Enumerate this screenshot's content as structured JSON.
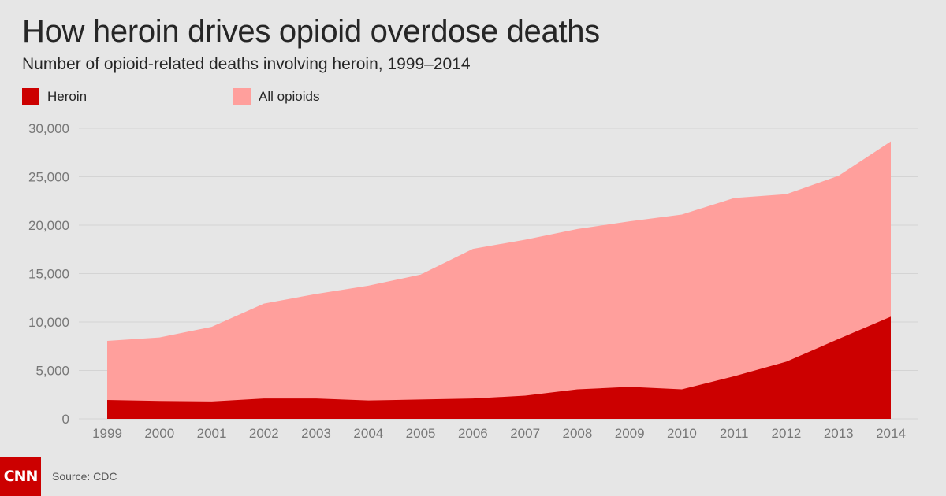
{
  "header": {
    "title": "How heroin drives opioid overdose deaths",
    "subtitle": "Number of opioid-related deaths involving heroin, 1999–2014"
  },
  "footer": {
    "logo_text": "CNN",
    "source": "Source: CDC"
  },
  "colors": {
    "heroin": "#cc0000",
    "all_opioids": "#ff9f9c",
    "grid": "#d4d4d4",
    "tick_label": "#777777"
  },
  "chart_data": {
    "type": "area",
    "title": "How heroin drives opioid overdose deaths",
    "subtitle": "Number of opioid-related deaths involving heroin, 1999–2014",
    "x": [
      1999,
      2000,
      2001,
      2002,
      2003,
      2004,
      2005,
      2006,
      2007,
      2008,
      2009,
      2010,
      2011,
      2012,
      2013,
      2014
    ],
    "x_tick_labels": [
      "1999",
      "2000",
      "2001",
      "2002",
      "2003",
      "2004",
      "2005",
      "2006",
      "2007",
      "2008",
      "2009",
      "2010",
      "2011",
      "2012",
      "2013",
      "2014"
    ],
    "y_ticks": [
      0,
      5000,
      10000,
      15000,
      20000,
      25000,
      30000
    ],
    "y_tick_labels": [
      "0",
      "5,000",
      "10,000",
      "15,000",
      "20,000",
      "25,000",
      "30,000"
    ],
    "ylim": [
      0,
      30000
    ],
    "series": [
      {
        "name": "All opioids",
        "color": "#ff9f9c",
        "values": [
          8050,
          8400,
          9500,
          11900,
          12900,
          13750,
          14900,
          17550,
          18500,
          19600,
          20400,
          21100,
          22800,
          23200,
          25100,
          28650
        ]
      },
      {
        "name": "Heroin",
        "color": "#cc0000",
        "values": [
          1950,
          1850,
          1800,
          2100,
          2100,
          1900,
          2000,
          2100,
          2400,
          3050,
          3300,
          3050,
          4400,
          5900,
          8250,
          10550
        ]
      }
    ],
    "legend": {
      "placement": "top-left",
      "entries": [
        {
          "label": "Heroin",
          "color": "#cc0000"
        },
        {
          "label": "All opioids",
          "color": "#ff9f9c"
        }
      ]
    },
    "grid": true
  }
}
